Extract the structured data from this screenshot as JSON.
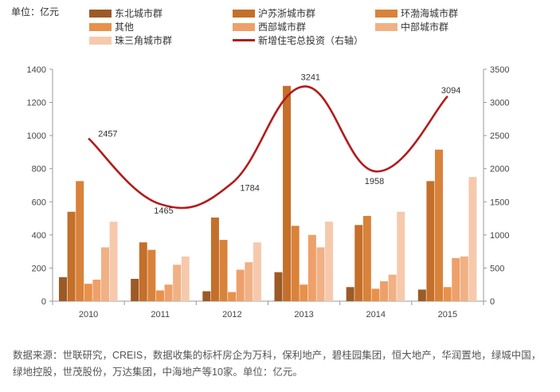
{
  "unit_label": "单位：亿元",
  "source_note": "数据来源：世联研究，CREIS，数据收集的标杆房企为万科，保利地产，碧桂园集团，恒大地产，华润置地，绿城中国，绿地控股，世茂股份，万达集团，中海地产等10家。单位：亿元。",
  "colors": {
    "series": [
      "#9c5a26",
      "#c46f2a",
      "#d9823a",
      "#e8914a",
      "#eea06a",
      "#f0b184",
      "#f6c9ad"
    ],
    "line": "#b31b1b",
    "axis": "#999999"
  },
  "chart_data": {
    "type": "bar",
    "categories": [
      "2010",
      "2011",
      "2012",
      "2013",
      "2014",
      "2015"
    ],
    "ylim": [
      0,
      1400
    ],
    "yticks": [
      "0",
      "200",
      "400",
      "600",
      "800",
      "1000",
      "1200",
      "1400"
    ],
    "y2lim": [
      0,
      3500
    ],
    "y2ticks": [
      "0",
      "500",
      "1000",
      "1500",
      "2000",
      "2500",
      "3000",
      "3500"
    ],
    "series": [
      {
        "name": "东北城市群",
        "values": [
          145,
          135,
          60,
          175,
          85,
          70
        ]
      },
      {
        "name": "沪苏浙城市群",
        "values": [
          540,
          355,
          505,
          1300,
          460,
          725
        ]
      },
      {
        "name": "环渤海城市群",
        "values": [
          725,
          310,
          370,
          455,
          515,
          915
        ]
      },
      {
        "name": "其他",
        "values": [
          105,
          65,
          55,
          100,
          75,
          85
        ]
      },
      {
        "name": "西部城市群",
        "values": [
          130,
          100,
          190,
          400,
          120,
          260
        ]
      },
      {
        "name": "中部城市群",
        "values": [
          325,
          220,
          235,
          325,
          160,
          270
        ]
      },
      {
        "name": "珠三角城市群",
        "values": [
          480,
          270,
          355,
          480,
          540,
          750
        ]
      }
    ],
    "line_series": {
      "name": "新增住宅总投资（右轴）",
      "axis": "right",
      "values": [
        2457,
        1465,
        1784,
        3241,
        1958,
        3094
      ],
      "labels": [
        "2457",
        "1465",
        "1784",
        "3241",
        "1958",
        "3094"
      ]
    },
    "grid": false,
    "legend": "top"
  }
}
